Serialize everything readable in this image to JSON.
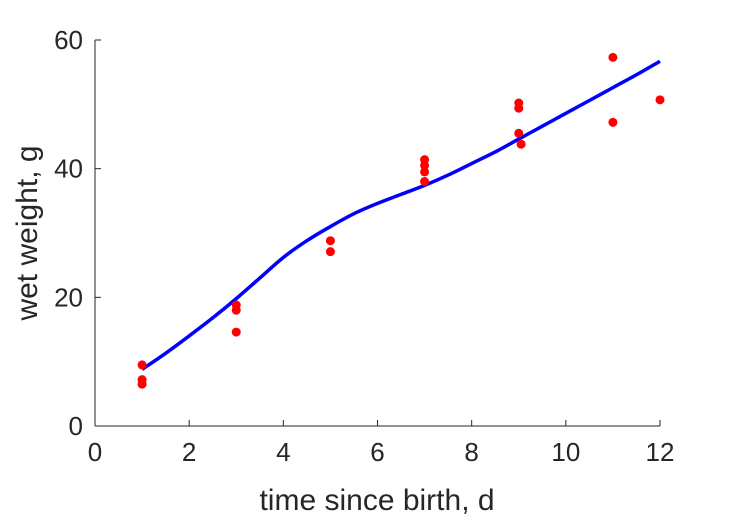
{
  "chart_data": {
    "type": "scatter",
    "title": "",
    "xlabel": "time since birth, d",
    "ylabel": "wet weight, g",
    "xlim": [
      0,
      12
    ],
    "ylim": [
      0,
      60
    ],
    "xticks": [
      0,
      2,
      4,
      6,
      8,
      10,
      12
    ],
    "yticks": [
      0,
      20,
      40,
      60
    ],
    "grid": false,
    "colors": {
      "points": "#ff0000",
      "fit": "#0000ff",
      "axis": "#262626"
    },
    "series": [
      {
        "kind": "scatter",
        "x": [
          1,
          1,
          1,
          3,
          3,
          3,
          5,
          5,
          7,
          7,
          7,
          7,
          9,
          9,
          9,
          9.05,
          11,
          11,
          12
        ],
        "y": [
          9.5,
          7.2,
          6.5,
          18.8,
          18.0,
          14.6,
          28.8,
          27.1,
          41.4,
          40.5,
          39.5,
          38.0,
          50.2,
          49.4,
          45.5,
          43.8,
          57.3,
          47.2,
          50.7
        ]
      },
      {
        "kind": "line",
        "x": [
          1,
          1.5,
          2,
          2.5,
          3,
          3.5,
          4,
          4.5,
          5,
          5.5,
          6,
          6.5,
          7,
          7.5,
          8,
          8.5,
          9,
          9.5,
          10,
          10.5,
          11,
          11.5,
          12
        ],
        "y": [
          8.8,
          11.3,
          14.0,
          16.8,
          19.8,
          23.0,
          26.2,
          28.8,
          31.0,
          33.0,
          34.6,
          36.0,
          37.4,
          39.0,
          40.8,
          42.6,
          44.6,
          46.6,
          48.6,
          50.6,
          52.6,
          54.6,
          56.7
        ]
      }
    ]
  }
}
